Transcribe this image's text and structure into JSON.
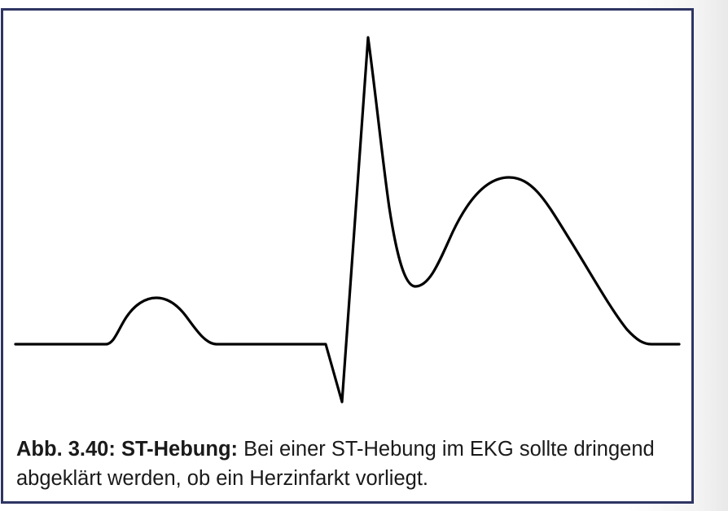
{
  "figure": {
    "caption_label": "Abb. 3.40: ST-Hebung:",
    "caption_text": "Bei einer ST-Hebung im EKG sollte dringend abgeklärt werden, ob ein Herzinfarkt vorliegt.",
    "line_color": "#000000",
    "frame_color": "#2e3563"
  }
}
